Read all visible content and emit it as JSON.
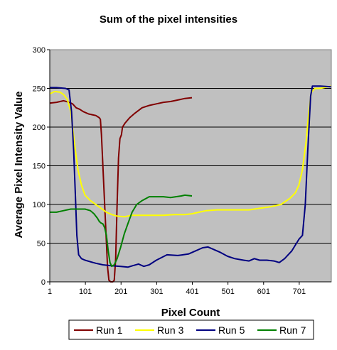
{
  "chart_data": {
    "type": "line",
    "title": "Sum of the pixel intensities",
    "xlabel": "Pixel Count",
    "ylabel": "Average Pixel Intensity Value",
    "xlim": [
      1,
      791
    ],
    "ylim": [
      0,
      300
    ],
    "x_ticks": [
      1,
      101,
      201,
      301,
      401,
      501,
      601,
      701
    ],
    "x_tick_labels": [
      "1",
      "101",
      "201",
      "301",
      "401",
      "501",
      "601",
      "701"
    ],
    "y_ticks": [
      0,
      50,
      100,
      150,
      200,
      250,
      300
    ],
    "y_tick_labels": [
      "0",
      "50",
      "100",
      "150",
      "200",
      "250",
      "300"
    ],
    "grid": "horizontal",
    "plot_background": "#c0c0c0",
    "legend_position": "bottom",
    "series": [
      {
        "name": "Run 1",
        "color": "#800000",
        "points": [
          [
            1,
            231
          ],
          [
            20,
            232
          ],
          [
            40,
            234
          ],
          [
            55,
            232
          ],
          [
            65,
            230
          ],
          [
            75,
            225
          ],
          [
            85,
            223
          ],
          [
            95,
            220
          ],
          [
            110,
            217
          ],
          [
            120,
            216
          ],
          [
            130,
            215
          ],
          [
            140,
            212
          ],
          [
            143,
            210
          ],
          [
            146,
            190
          ],
          [
            150,
            150
          ],
          [
            155,
            100
          ],
          [
            160,
            50
          ],
          [
            163,
            20
          ],
          [
            167,
            2
          ],
          [
            172,
            0
          ],
          [
            178,
            0
          ],
          [
            182,
            2
          ],
          [
            186,
            30
          ],
          [
            190,
            100
          ],
          [
            194,
            160
          ],
          [
            198,
            185
          ],
          [
            202,
            190
          ],
          [
            205,
            200
          ],
          [
            212,
            205
          ],
          [
            225,
            212
          ],
          [
            240,
            218
          ],
          [
            260,
            225
          ],
          [
            280,
            228
          ],
          [
            300,
            230
          ],
          [
            320,
            232
          ],
          [
            340,
            233
          ],
          [
            360,
            235
          ],
          [
            380,
            237
          ],
          [
            400,
            238
          ]
        ]
      },
      {
        "name": "Run 3",
        "color": "#ffff00",
        "points": [
          [
            1,
            243
          ],
          [
            15,
            246
          ],
          [
            30,
            245
          ],
          [
            40,
            242
          ],
          [
            50,
            236
          ],
          [
            60,
            220
          ],
          [
            70,
            180
          ],
          [
            80,
            145
          ],
          [
            90,
            125
          ],
          [
            100,
            112
          ],
          [
            115,
            105
          ],
          [
            130,
            100
          ],
          [
            145,
            95
          ],
          [
            160,
            90
          ],
          [
            175,
            87
          ],
          [
            190,
            85
          ],
          [
            210,
            84
          ],
          [
            230,
            86
          ],
          [
            260,
            86
          ],
          [
            290,
            86
          ],
          [
            320,
            86
          ],
          [
            350,
            87
          ],
          [
            380,
            87
          ],
          [
            400,
            88
          ],
          [
            420,
            90
          ],
          [
            440,
            92
          ],
          [
            470,
            93
          ],
          [
            500,
            93
          ],
          [
            530,
            93
          ],
          [
            560,
            93
          ],
          [
            590,
            95
          ],
          [
            620,
            97
          ],
          [
            650,
            100
          ],
          [
            675,
            108
          ],
          [
            690,
            115
          ],
          [
            700,
            125
          ],
          [
            710,
            145
          ],
          [
            720,
            180
          ],
          [
            728,
            220
          ],
          [
            735,
            245
          ],
          [
            745,
            250
          ],
          [
            760,
            250
          ],
          [
            780,
            252
          ],
          [
            790,
            253
          ]
        ]
      },
      {
        "name": "Run 5",
        "color": "#000080",
        "points": [
          [
            1,
            251
          ],
          [
            20,
            251
          ],
          [
            45,
            250
          ],
          [
            55,
            248
          ],
          [
            62,
            220
          ],
          [
            68,
            170
          ],
          [
            73,
            110
          ],
          [
            77,
            60
          ],
          [
            82,
            35
          ],
          [
            90,
            30
          ],
          [
            100,
            28
          ],
          [
            115,
            26
          ],
          [
            130,
            24
          ],
          [
            150,
            22
          ],
          [
            170,
            21
          ],
          [
            200,
            20
          ],
          [
            220,
            19
          ],
          [
            235,
            21
          ],
          [
            250,
            23
          ],
          [
            265,
            20
          ],
          [
            280,
            22
          ],
          [
            300,
            28
          ],
          [
            330,
            35
          ],
          [
            360,
            34
          ],
          [
            390,
            36
          ],
          [
            410,
            40
          ],
          [
            430,
            44
          ],
          [
            445,
            45
          ],
          [
            460,
            42
          ],
          [
            480,
            38
          ],
          [
            500,
            33
          ],
          [
            520,
            30
          ],
          [
            545,
            28
          ],
          [
            560,
            27
          ],
          [
            575,
            30
          ],
          [
            590,
            28
          ],
          [
            610,
            28
          ],
          [
            630,
            27
          ],
          [
            645,
            25
          ],
          [
            660,
            30
          ],
          [
            680,
            40
          ],
          [
            700,
            55
          ],
          [
            710,
            60
          ],
          [
            718,
            100
          ],
          [
            725,
            170
          ],
          [
            733,
            240
          ],
          [
            738,
            253
          ],
          [
            760,
            253
          ],
          [
            790,
            252
          ]
        ]
      },
      {
        "name": "Run 7",
        "color": "#008000",
        "points": [
          [
            1,
            90
          ],
          [
            20,
            90
          ],
          [
            40,
            92
          ],
          [
            60,
            94
          ],
          [
            80,
            94
          ],
          [
            100,
            94
          ],
          [
            115,
            92
          ],
          [
            125,
            88
          ],
          [
            135,
            82
          ],
          [
            140,
            78
          ],
          [
            145,
            76
          ],
          [
            150,
            75
          ],
          [
            155,
            70
          ],
          [
            160,
            60
          ],
          [
            165,
            40
          ],
          [
            170,
            25
          ],
          [
            175,
            20
          ],
          [
            182,
            22
          ],
          [
            190,
            30
          ],
          [
            200,
            45
          ],
          [
            210,
            62
          ],
          [
            220,
            75
          ],
          [
            232,
            90
          ],
          [
            245,
            100
          ],
          [
            260,
            105
          ],
          [
            280,
            110
          ],
          [
            300,
            110
          ],
          [
            320,
            110
          ],
          [
            340,
            109
          ],
          [
            355,
            110
          ],
          [
            370,
            111
          ],
          [
            380,
            112
          ],
          [
            400,
            111
          ]
        ]
      }
    ]
  }
}
